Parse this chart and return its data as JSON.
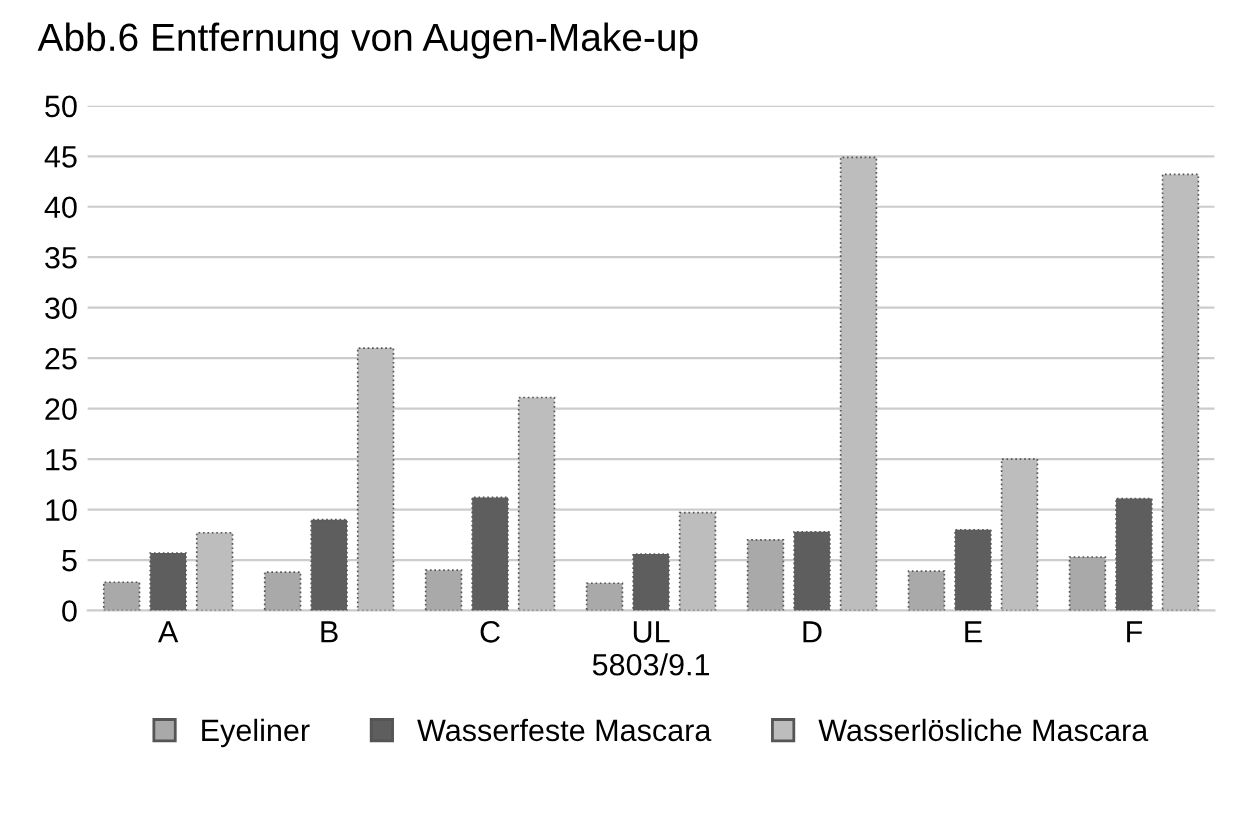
{
  "chart_data": {
    "type": "bar",
    "title": "Abb.6 Entfernung von Augen-Make-up",
    "categories": [
      "A",
      "B",
      "C",
      "UL\n5803/9.1",
      "D",
      "E",
      "F"
    ],
    "series": [
      {
        "name": "Eyeliner",
        "color": "#a9a9a9",
        "values": [
          2.8,
          3.8,
          4.0,
          2.7,
          7.0,
          3.9,
          5.3
        ]
      },
      {
        "name": "Wasserfeste Mascara",
        "color": "#5e5e5e",
        "values": [
          5.7,
          9.0,
          11.2,
          5.6,
          7.8,
          8.0,
          11.1
        ]
      },
      {
        "name": "Wasserlösliche Mascara",
        "color": "#bdbdbd",
        "values": [
          7.7,
          26.0,
          21.1,
          9.7,
          44.9,
          15.0,
          43.2
        ]
      }
    ],
    "ylim": [
      0,
      50
    ],
    "yticks": [
      0,
      5,
      10,
      15,
      20,
      25,
      30,
      35,
      40,
      45,
      50
    ],
    "grid": "y",
    "legend": "bottom"
  }
}
